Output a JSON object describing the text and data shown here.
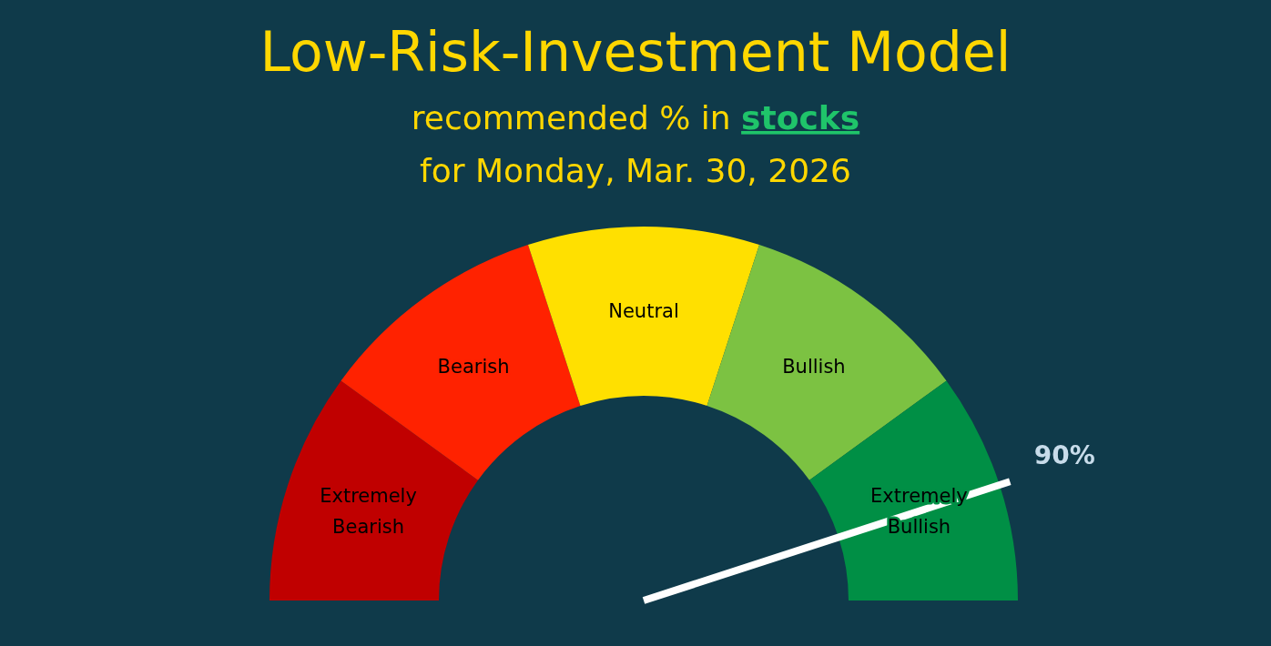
{
  "chart_data": {
    "type": "donut",
    "title": "Low-Risk-Investment Model",
    "subtitle": "recommended % in stocks\nfor Monday,  Mar. 30, 2026",
    "categories": [
      "Extremely Bearish",
      "Bearish",
      "Neutral",
      "Bullish",
      "Extremely Bullish"
    ],
    "values": [
      20,
      20,
      20,
      20,
      20
    ],
    "colors": [
      "#c00000",
      "#ff2200",
      "#ffe000",
      "#7cc242",
      "#008f45"
    ],
    "needle": "Extremely Bullish",
    "annotations": [
      "90%"
    ]
  }
}
